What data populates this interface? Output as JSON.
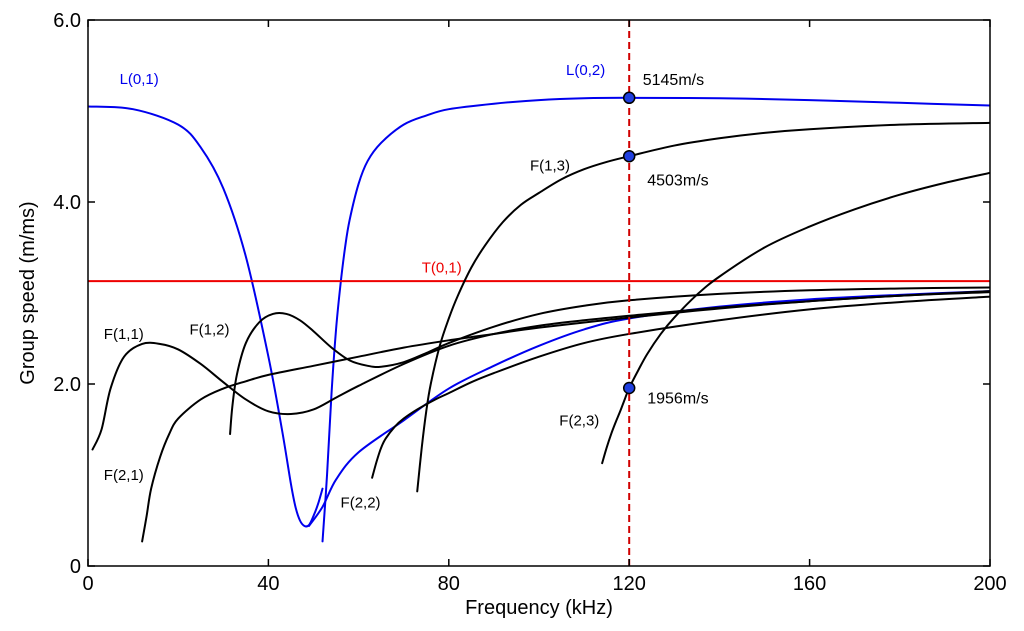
{
  "chart_data": {
    "type": "line",
    "title": "",
    "xlabel": "Frequency (kHz)",
    "ylabel": "Group speed (m/ms)",
    "xlim": [
      0,
      200
    ],
    "ylim": [
      0,
      6
    ],
    "xticks": [
      0,
      40,
      80,
      120,
      160,
      200
    ],
    "xtick_labels": [
      "0",
      "40",
      "80",
      "120",
      "160",
      "200"
    ],
    "yticks": [
      0,
      2,
      4,
      6
    ],
    "ytick_labels": [
      "0",
      "2.0",
      "4.0",
      "6.0"
    ],
    "grid": false,
    "colors": {
      "longitudinal": "#0000ee",
      "torsional": "#ee0000",
      "flexural": "#000000",
      "marker_fill": "#1f3fe0",
      "vline": "#d00000"
    },
    "vline": {
      "x": 120,
      "style": "dashed"
    },
    "series": [
      {
        "name": "L(0,1)",
        "color": "#0000ee",
        "x": [
          0,
          10,
          20,
          25,
          30,
          35,
          40,
          43,
          45,
          46,
          47,
          48,
          49,
          50,
          51,
          52
        ],
        "y": [
          5.05,
          5.02,
          4.85,
          4.6,
          4.15,
          3.4,
          2.3,
          1.5,
          0.9,
          0.65,
          0.5,
          0.44,
          0.45,
          0.55,
          0.68,
          0.85
        ]
      },
      {
        "name": "L(0,2)",
        "color": "#0000ee",
        "x": [
          52,
          53,
          54,
          55,
          56,
          57,
          58,
          60,
          62,
          65,
          70,
          75,
          80,
          90,
          100,
          110,
          120,
          140,
          160,
          180,
          200
        ],
        "y": [
          0.27,
          1.0,
          1.9,
          2.6,
          3.1,
          3.5,
          3.8,
          4.2,
          4.45,
          4.65,
          4.85,
          4.95,
          5.02,
          5.08,
          5.12,
          5.14,
          5.145,
          5.14,
          5.12,
          5.09,
          5.06
        ]
      },
      {
        "name": "L(0,1) tail",
        "color": "#0000ee",
        "x": [
          49,
          52,
          55,
          60,
          70,
          80,
          90,
          100,
          110,
          120,
          140,
          160,
          180,
          200
        ],
        "y": [
          0.44,
          0.65,
          0.95,
          1.25,
          1.6,
          1.95,
          2.2,
          2.42,
          2.6,
          2.72,
          2.85,
          2.93,
          2.98,
          3.02
        ]
      },
      {
        "name": "T(0,1)",
        "color": "#ee0000",
        "x": [
          0,
          200
        ],
        "y": [
          3.13,
          3.13
        ]
      },
      {
        "name": "F(1,1)",
        "color": "#000000",
        "x": [
          1,
          3,
          5,
          8,
          12,
          16,
          20,
          25,
          30,
          35,
          40,
          45,
          50,
          55,
          60,
          70,
          80,
          90,
          100,
          110,
          120,
          140,
          160,
          180,
          200
        ],
        "y": [
          1.28,
          1.5,
          1.95,
          2.3,
          2.44,
          2.44,
          2.38,
          2.22,
          2.02,
          1.83,
          1.7,
          1.67,
          1.72,
          1.85,
          1.98,
          2.22,
          2.42,
          2.55,
          2.64,
          2.7,
          2.75,
          2.84,
          2.91,
          2.97,
          3.01
        ]
      },
      {
        "name": "F(2,1)",
        "color": "#000000",
        "x": [
          12,
          13,
          14,
          16,
          18,
          20,
          25,
          30,
          35,
          40,
          50,
          60,
          70,
          80,
          90,
          100,
          120,
          140,
          160,
          180,
          200
        ],
        "y": [
          0.27,
          0.55,
          0.85,
          1.2,
          1.45,
          1.62,
          1.83,
          1.95,
          2.03,
          2.1,
          2.2,
          2.3,
          2.4,
          2.48,
          2.55,
          2.62,
          2.73,
          2.83,
          2.91,
          2.97,
          3.02
        ]
      },
      {
        "name": "F(1,2)",
        "color": "#000000",
        "x": [
          31.5,
          32,
          33,
          35,
          38,
          41,
          44,
          47,
          50,
          54,
          58,
          62,
          65,
          70,
          75,
          80,
          90,
          100,
          110,
          120,
          140,
          160,
          180,
          200
        ],
        "y": [
          1.45,
          1.75,
          2.1,
          2.45,
          2.68,
          2.77,
          2.77,
          2.7,
          2.58,
          2.4,
          2.26,
          2.2,
          2.19,
          2.24,
          2.34,
          2.45,
          2.63,
          2.77,
          2.86,
          2.92,
          2.99,
          3.03,
          3.05,
          3.06
        ]
      },
      {
        "name": "F(2,2)",
        "color": "#000000",
        "x": [
          63,
          64,
          65,
          66,
          68,
          70,
          73,
          77,
          80,
          85,
          90,
          100,
          110,
          120,
          140,
          160,
          180,
          200
        ],
        "y": [
          0.97,
          1.15,
          1.3,
          1.4,
          1.53,
          1.62,
          1.72,
          1.83,
          1.9,
          2.02,
          2.12,
          2.3,
          2.45,
          2.55,
          2.7,
          2.82,
          2.9,
          2.96
        ]
      },
      {
        "name": "F(1,3)",
        "color": "#000000",
        "x": [
          73,
          74,
          75,
          76,
          78,
          80,
          82,
          85,
          88,
          92,
          96,
          100,
          105,
          110,
          115,
          120,
          130,
          140,
          150,
          160,
          180,
          200
        ],
        "y": [
          0.82,
          1.3,
          1.7,
          2.0,
          2.42,
          2.72,
          2.97,
          3.28,
          3.52,
          3.78,
          3.97,
          4.1,
          4.25,
          4.36,
          4.44,
          4.503,
          4.62,
          4.7,
          4.76,
          4.8,
          4.85,
          4.87
        ]
      },
      {
        "name": "F(2,3)",
        "color": "#000000",
        "x": [
          114,
          115,
          116,
          117,
          118,
          119,
          120,
          122,
          124,
          127,
          130,
          135,
          140,
          150,
          160,
          170,
          180,
          190,
          200
        ],
        "y": [
          1.13,
          1.3,
          1.45,
          1.58,
          1.7,
          1.83,
          1.956,
          2.15,
          2.33,
          2.55,
          2.73,
          2.98,
          3.18,
          3.5,
          3.73,
          3.92,
          4.08,
          4.21,
          4.32
        ]
      }
    ],
    "annotations": [
      {
        "text": "L(0,1)",
        "x": 7,
        "y": 5.35,
        "color": "#0000ee"
      },
      {
        "text": "L(0,2)",
        "x": 106,
        "y": 5.45,
        "color": "#0000ee"
      },
      {
        "text": "T(0,1)",
        "x": 74,
        "y": 3.28,
        "color": "#ee0000"
      },
      {
        "text": "F(1,3)",
        "x": 98,
        "y": 4.4,
        "color": "#000000"
      },
      {
        "text": "F(1,1)",
        "x": 3.5,
        "y": 2.55,
        "color": "#000000"
      },
      {
        "text": "F(1,2)",
        "x": 22.5,
        "y": 2.6,
        "color": "#000000"
      },
      {
        "text": "F(2,1)",
        "x": 3.5,
        "y": 1.0,
        "color": "#000000"
      },
      {
        "text": "F(2,2)",
        "x": 56,
        "y": 0.7,
        "color": "#000000"
      },
      {
        "text": "F(2,3)",
        "x": 104.5,
        "y": 1.6,
        "color": "#000000"
      }
    ],
    "markers": [
      {
        "x": 120,
        "y": 5.145,
        "label": "5145m/s",
        "label_x": 123,
        "label_y": 5.35
      },
      {
        "x": 120,
        "y": 4.503,
        "label": "4503m/s",
        "label_x": 124,
        "label_y": 4.25
      },
      {
        "x": 120,
        "y": 1.956,
        "label": "1956m/s",
        "label_x": 124,
        "label_y": 1.85
      }
    ]
  }
}
